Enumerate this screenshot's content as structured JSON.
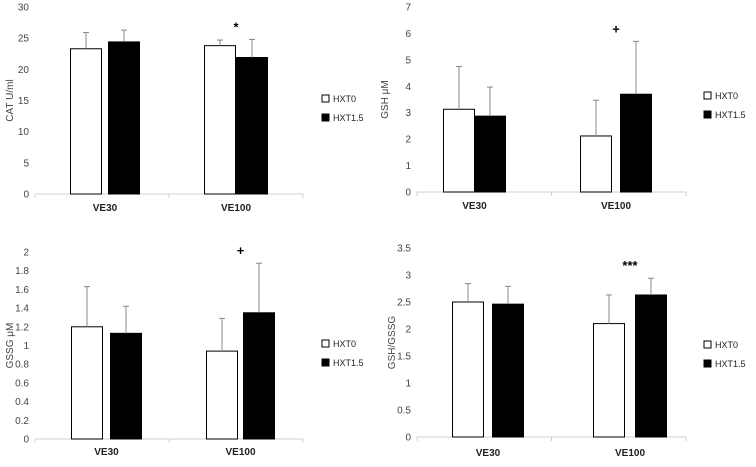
{
  "chart_data": [
    {
      "type": "bar",
      "ylabel": "CAT U/ml",
      "ylim": [
        0,
        30
      ],
      "yticks": [
        "0",
        "5",
        "10",
        "15",
        "20",
        "25",
        "30"
      ],
      "categories": [
        "VE30",
        "VE100"
      ],
      "series": [
        {
          "name": "HXT0",
          "color": "#ffffff",
          "values": [
            23.3,
            23.8
          ],
          "errors": [
            2.6,
            0.9
          ]
        },
        {
          "name": "HXT1.5",
          "color": "#000000",
          "values": [
            24.4,
            21.9
          ],
          "errors": [
            1.9,
            2.9
          ]
        }
      ],
      "annotations": [
        {
          "category": "VE100",
          "text": "*"
        }
      ],
      "legend": "right",
      "grid": false
    },
    {
      "type": "bar",
      "ylabel": "GSH μM",
      "ylim": [
        0,
        7
      ],
      "yticks": [
        "0",
        "1",
        "2",
        "3",
        "4",
        "5",
        "6",
        "7"
      ],
      "categories": [
        "VE30",
        "VE100"
      ],
      "series": [
        {
          "name": "HXT0",
          "color": "#ffffff",
          "values": [
            3.13,
            2.12
          ],
          "errors": [
            1.62,
            1.35
          ]
        },
        {
          "name": "HXT1.5",
          "color": "#000000",
          "values": [
            2.87,
            3.7
          ],
          "errors": [
            1.1,
            2.0
          ]
        }
      ],
      "annotations": [
        {
          "category": "VE100",
          "text": "+"
        }
      ],
      "legend": "right",
      "grid": false
    },
    {
      "type": "bar",
      "ylabel": "GSSG μM",
      "ylim": [
        0,
        2
      ],
      "yticks": [
        "0",
        "0.2",
        "0.4",
        "0.6",
        "0.8",
        "1",
        "1.2",
        "1.4",
        "1.6",
        "1.8",
        "2"
      ],
      "categories": [
        "VE30",
        "VE100"
      ],
      "series": [
        {
          "name": "HXT0",
          "color": "#ffffff",
          "values": [
            1.2,
            0.94
          ],
          "errors": [
            0.43,
            0.35
          ]
        },
        {
          "name": "HXT1.5",
          "color": "#000000",
          "values": [
            1.13,
            1.35
          ],
          "errors": [
            0.29,
            0.53
          ]
        }
      ],
      "annotations": [
        {
          "category": "VE100",
          "text": "+"
        }
      ],
      "legend": "right",
      "grid": false
    },
    {
      "type": "bar",
      "ylabel": "GSH/GSSG",
      "ylim": [
        0,
        3.5
      ],
      "yticks": [
        "0",
        "0.5",
        "1",
        "1.5",
        "2",
        "2.5",
        "3",
        "3.5"
      ],
      "categories": [
        "VE30",
        "VE100"
      ],
      "series": [
        {
          "name": "HXT0",
          "color": "#ffffff",
          "values": [
            2.5,
            2.1
          ],
          "errors": [
            0.34,
            0.53
          ]
        },
        {
          "name": "HXT1.5",
          "color": "#000000",
          "values": [
            2.46,
            2.63
          ],
          "errors": [
            0.33,
            0.31
          ]
        }
      ],
      "annotations": [
        {
          "category": "VE100",
          "text": "***"
        }
      ],
      "legend": "right",
      "grid": false
    }
  ]
}
